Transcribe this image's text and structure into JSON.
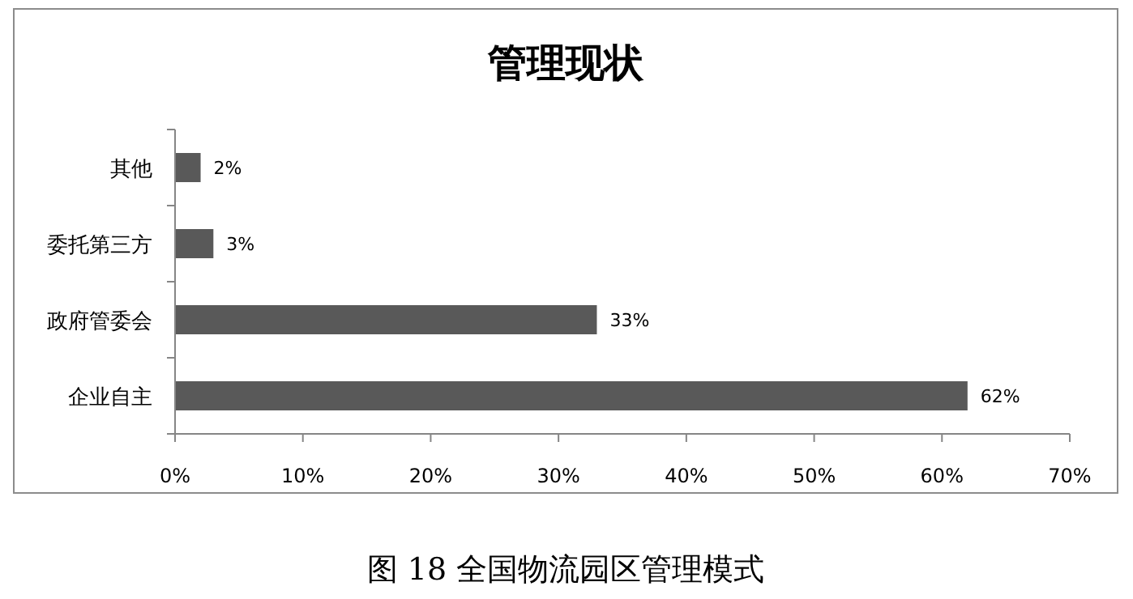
{
  "chart_data": {
    "type": "bar",
    "orientation": "horizontal",
    "title": "管理现状",
    "categories": [
      "其他",
      "委托第三方",
      "政府管委会",
      "企业自主"
    ],
    "values": [
      2,
      3,
      33,
      62
    ],
    "color": "#595959",
    "value_labels": [
      "2%",
      "3%",
      "33%",
      "62%"
    ],
    "xlim": [
      0,
      70
    ],
    "xticks": [
      {
        "value": 0,
        "label": "0%"
      },
      {
        "value": 10,
        "label": "10%"
      },
      {
        "value": 20,
        "label": "20%"
      },
      {
        "value": 30,
        "label": "30%"
      },
      {
        "value": 40,
        "label": "40%"
      },
      {
        "value": 50,
        "label": "50%"
      },
      {
        "value": 60,
        "label": "60%"
      },
      {
        "value": 70,
        "label": "70%"
      }
    ],
    "annotations": [
      "图 18  全国物流园区管理模式"
    ]
  }
}
